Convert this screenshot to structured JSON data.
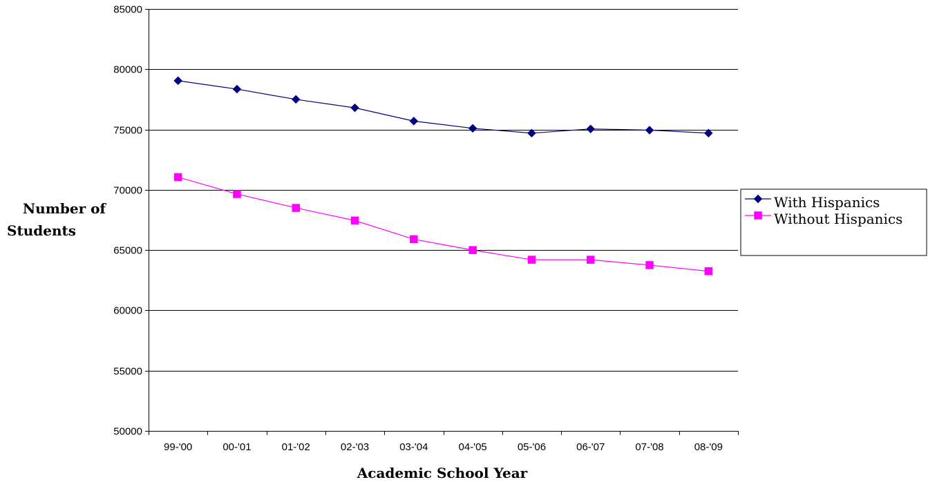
{
  "chart_data": {
    "type": "line",
    "title": "",
    "xlabel": "Academic School Year",
    "ylabel": "Number of Students",
    "ylabel_lines": [
      "Number of",
      "Students"
    ],
    "categories": [
      "99-'00",
      "00-'01",
      "01-'02",
      "02-'03",
      "03-'04",
      "04-'05",
      "05-'06",
      "06-'07",
      "07-'08",
      "08-'09"
    ],
    "ylim": [
      50000,
      85000
    ],
    "yticks": [
      50000,
      55000,
      60000,
      65000,
      70000,
      75000,
      80000,
      85000
    ],
    "grid": true,
    "legend_position": "right",
    "series": [
      {
        "name": "With Hispanics",
        "marker": "diamond",
        "color": "#000080",
        "values": [
          79050,
          78350,
          77500,
          76800,
          75700,
          75100,
          74700,
          75050,
          74950,
          74700
        ]
      },
      {
        "name": "Without Hispanics",
        "marker": "square",
        "color": "#ff00ff",
        "values": [
          71050,
          69650,
          68500,
          67450,
          65900,
          65000,
          64200,
          64200,
          63750,
          63250
        ]
      }
    ]
  }
}
